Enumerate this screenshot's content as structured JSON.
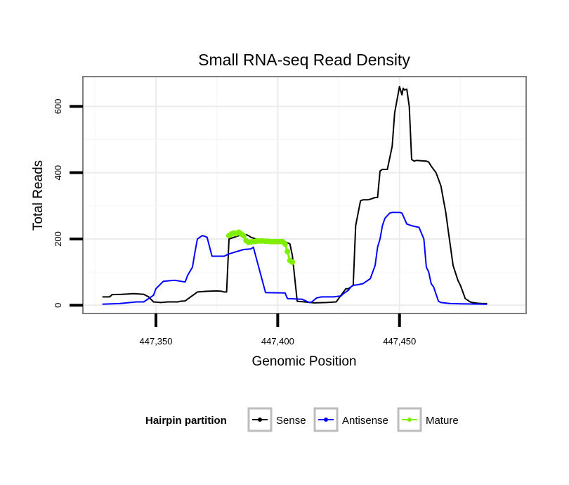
{
  "chart_data": {
    "type": "line",
    "title": "Small RNA-seq Read Density",
    "xlabel": "Genomic Position",
    "ylabel": "Total Reads",
    "xlim": [
      447320,
      447502
    ],
    "ylim": [
      -25,
      690
    ],
    "x_ticks": [
      447350,
      447400,
      447450
    ],
    "x_tick_labels": [
      "447,350",
      "447,400",
      "447,450"
    ],
    "y_ticks": [
      0,
      200,
      400,
      600
    ],
    "y_tick_labels": [
      "0",
      "200",
      "400",
      "600"
    ],
    "grid": true,
    "legend": {
      "title": "Hairpin partition",
      "position": "bottom",
      "entries": [
        "Sense",
        "Antisense",
        "Mature"
      ]
    },
    "series": [
      {
        "name": "Sense",
        "color": "#000000",
        "markers": false,
        "x": [
          447328,
          447331,
          447332,
          447336,
          447341,
          447345,
          447347,
          447349,
          447352,
          447355,
          447359,
          447360,
          447362,
          447367,
          447371,
          447375,
          447377,
          447378,
          447379,
          447380,
          447386,
          447387,
          447388,
          447389,
          447391,
          447394,
          447397,
          447400,
          447402,
          447403,
          447405,
          447406,
          447408,
          447411,
          447415,
          447420,
          447424,
          447425,
          447428,
          447429,
          447430,
          447431,
          447432,
          447434,
          447435,
          447437,
          447438,
          447440,
          447441,
          447442,
          447443,
          447445,
          447447,
          447448,
          447449,
          447450,
          447451,
          447451.5,
          447452,
          447453,
          447454,
          447455,
          447456,
          447457,
          447459,
          447461,
          447462,
          447463,
          447465,
          447467,
          447468,
          447469,
          447470,
          447472,
          447474,
          447475,
          447476,
          447477,
          447478,
          447479,
          447480,
          447482,
          447484,
          447486
        ],
        "values": [
          25,
          25,
          32,
          33,
          35,
          33,
          25,
          10,
          8,
          10,
          10,
          12,
          13,
          40,
          42,
          43,
          42,
          40,
          40,
          200,
          215,
          213,
          210,
          205,
          200,
          196,
          195,
          195,
          195,
          192,
          185,
          150,
          12,
          10,
          7,
          8,
          10,
          20,
          50,
          50,
          55,
          60,
          240,
          315,
          318,
          318,
          320,
          325,
          325,
          405,
          410,
          410,
          480,
          580,
          620,
          660,
          635,
          655,
          650,
          652,
          600,
          440,
          435,
          437,
          436,
          435,
          432,
          420,
          400,
          360,
          320,
          280,
          225,
          120,
          75,
          60,
          40,
          20,
          15,
          10,
          8,
          6,
          5,
          5
        ]
      },
      {
        "name": "Antisense",
        "color": "#0000ff",
        "markers": false,
        "x": [
          447328,
          447335,
          447342,
          447345,
          447349,
          447350,
          447353,
          447357,
          447358,
          447362,
          447363,
          447365,
          447366,
          447367,
          447369,
          447370,
          447371,
          447373,
          447378,
          447380,
          447386,
          447389,
          447390,
          447395,
          447403,
          447404,
          447410,
          447413,
          447414,
          447416,
          447418,
          447423,
          447426,
          447427,
          447429,
          447430,
          447431,
          447433,
          447435,
          447438,
          447440,
          447441,
          447442,
          447443,
          447444,
          447446,
          447447,
          447450,
          447451,
          447452,
          447453,
          447455,
          447458,
          447460,
          447461,
          447462,
          447463,
          447464,
          447466,
          447467,
          447471,
          447475,
          447486
        ],
        "values": [
          3,
          5,
          10,
          10,
          30,
          50,
          72,
          75,
          75,
          70,
          90,
          115,
          160,
          200,
          210,
          208,
          205,
          148,
          148,
          155,
          168,
          170,
          175,
          38,
          37,
          20,
          18,
          8,
          10,
          22,
          25,
          25,
          28,
          35,
          45,
          55,
          60,
          62,
          65,
          80,
          120,
          175,
          200,
          240,
          262,
          278,
          280,
          280,
          278,
          262,
          245,
          240,
          235,
          200,
          115,
          100,
          65,
          55,
          12,
          8,
          5,
          4,
          3
        ]
      },
      {
        "name": "Mature",
        "color": "#80ee00",
        "markers": true,
        "x": [
          447380,
          447381,
          447382,
          447383,
          447384,
          447385,
          447386,
          447387,
          447388,
          447389,
          447390,
          447391,
          447392,
          447393,
          447394,
          447395,
          447396,
          447397,
          447398,
          447399,
          447400,
          447401,
          447402,
          447403,
          447404,
          447405,
          447406
        ],
        "values": [
          210,
          215,
          218,
          216,
          220,
          215,
          210,
          195,
          190,
          191,
          192,
          193,
          194,
          194,
          194,
          193,
          193,
          192,
          192,
          192,
          192,
          192,
          192,
          185,
          162,
          135,
          130
        ]
      }
    ]
  }
}
